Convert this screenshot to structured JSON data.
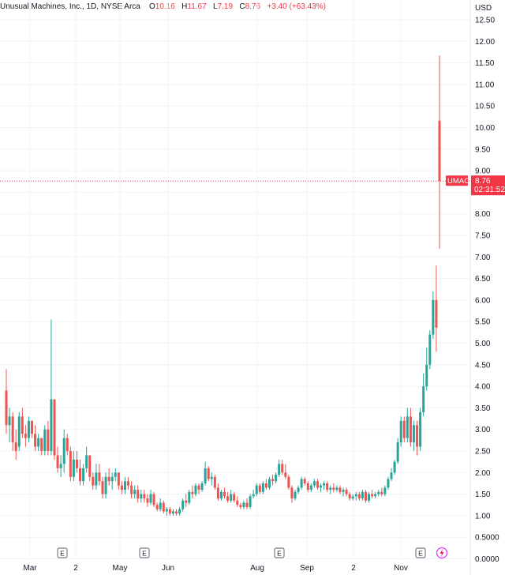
{
  "header": {
    "symbol_title": "Unusual Machines, Inc., 1D, NYSE Arca",
    "open_label": "O",
    "open_value": "10.16",
    "high_label": "H",
    "high_value": "11.67",
    "low_label": "L",
    "low_value": "7.19",
    "close_label": "C",
    "close_value": "8.76",
    "change": "+3.40 (+63.43%)"
  },
  "price_axis": {
    "currency": "USD",
    "ticks": [
      "12.50",
      "12.00",
      "11.50",
      "11.00",
      "10.50",
      "10.00",
      "9.50",
      "9.00",
      "8.50",
      "8.00",
      "7.50",
      "7.00",
      "6.50",
      "6.00",
      "5.50",
      "5.00",
      "4.50",
      "4.00",
      "3.50",
      "3.00",
      "2.50",
      "2.00",
      "1.50",
      "1.00",
      "0.5000",
      "0.0000"
    ]
  },
  "price_marker": {
    "ticker": "UMAC",
    "price": "8.76",
    "countdown": "02:31:52"
  },
  "time_axis": {
    "labels": [
      "Mar",
      "2",
      "May",
      "Jun",
      "Aug",
      "Sep",
      "2",
      "Nov"
    ]
  },
  "events": [
    {
      "type": "earnings",
      "label": "E"
    },
    {
      "type": "earnings",
      "label": "E"
    },
    {
      "type": "earnings",
      "label": "E"
    },
    {
      "type": "earnings",
      "label": "E"
    },
    {
      "type": "split",
      "label": "lightning-icon"
    }
  ],
  "colors": {
    "up": "#26a69a",
    "down": "#ef5350",
    "marker": "#f23645",
    "grid": "#f0f3fa",
    "axis_text": "#131722"
  },
  "chart_data": {
    "type": "candlestick",
    "title": "Unusual Machines, Inc., 1D, NYSE Arca",
    "ylabel": "USD",
    "ylim": [
      0,
      12.75
    ],
    "grid": true,
    "last_price": 8.76,
    "candles": [
      [
        3.9,
        4.4,
        2.9,
        3.1
      ],
      [
        3.1,
        3.5,
        2.7,
        3.3
      ],
      [
        3.3,
        3.4,
        2.5,
        2.7
      ],
      [
        2.7,
        3.0,
        2.3,
        2.5
      ],
      [
        2.6,
        3.4,
        2.5,
        3.3
      ],
      [
        3.3,
        3.5,
        2.8,
        2.9
      ],
      [
        2.9,
        3.1,
        2.6,
        2.8
      ],
      [
        2.8,
        3.3,
        2.7,
        3.2
      ],
      [
        3.2,
        3.2,
        2.8,
        2.9
      ],
      [
        2.9,
        3.1,
        2.5,
        2.6
      ],
      [
        2.6,
        2.9,
        2.5,
        2.8
      ],
      [
        2.8,
        2.8,
        2.4,
        2.5
      ],
      [
        2.5,
        3.1,
        2.4,
        3.0
      ],
      [
        3.0,
        3.2,
        2.4,
        2.5
      ],
      [
        2.5,
        5.55,
        2.4,
        3.7
      ],
      [
        3.7,
        3.7,
        2.3,
        2.4
      ],
      [
        2.4,
        2.6,
        2.0,
        2.1
      ],
      [
        2.1,
        2.4,
        1.9,
        2.2
      ],
      [
        2.2,
        3.0,
        2.0,
        2.8
      ],
      [
        2.8,
        2.9,
        2.4,
        2.5
      ],
      [
        2.5,
        2.6,
        1.8,
        1.9
      ],
      [
        1.9,
        2.5,
        1.8,
        2.3
      ],
      [
        2.3,
        2.5,
        2.0,
        2.1
      ],
      [
        2.1,
        2.3,
        1.7,
        1.8
      ],
      [
        1.8,
        2.2,
        1.7,
        2.1
      ],
      [
        2.1,
        2.6,
        2.0,
        2.4
      ],
      [
        2.4,
        2.4,
        1.8,
        1.9
      ],
      [
        1.9,
        2.0,
        1.6,
        1.7
      ],
      [
        1.7,
        2.2,
        1.6,
        2.0
      ],
      [
        2.0,
        2.2,
        1.7,
        1.8
      ],
      [
        1.8,
        1.9,
        1.4,
        1.5
      ],
      [
        1.5,
        2.0,
        1.4,
        1.9
      ],
      [
        1.9,
        2.1,
        1.7,
        1.8
      ],
      [
        1.8,
        2.0,
        1.6,
        1.9
      ],
      [
        1.9,
        2.1,
        1.8,
        2.0
      ],
      [
        2.0,
        2.0,
        1.6,
        1.7
      ],
      [
        1.7,
        1.8,
        1.5,
        1.6
      ],
      [
        1.6,
        1.9,
        1.5,
        1.8
      ],
      [
        1.8,
        1.9,
        1.6,
        1.7
      ],
      [
        1.7,
        1.8,
        1.4,
        1.5
      ],
      [
        1.5,
        1.7,
        1.4,
        1.6
      ],
      [
        1.6,
        1.7,
        1.3,
        1.4
      ],
      [
        1.4,
        1.6,
        1.3,
        1.5
      ],
      [
        1.5,
        1.6,
        1.3,
        1.4
      ],
      [
        1.4,
        1.5,
        1.2,
        1.3
      ],
      [
        1.3,
        1.6,
        1.25,
        1.5
      ],
      [
        1.5,
        1.55,
        1.2,
        1.25
      ],
      [
        1.25,
        1.3,
        1.1,
        1.15
      ],
      [
        1.15,
        1.4,
        1.1,
        1.3
      ],
      [
        1.3,
        1.35,
        1.05,
        1.1
      ],
      [
        1.1,
        1.2,
        1.0,
        1.15
      ],
      [
        1.15,
        1.2,
        1.0,
        1.05
      ],
      [
        1.05,
        1.15,
        1.0,
        1.1
      ],
      [
        1.1,
        1.15,
        1.0,
        1.05
      ],
      [
        1.05,
        1.2,
        1.0,
        1.15
      ],
      [
        1.15,
        1.4,
        1.1,
        1.35
      ],
      [
        1.35,
        1.5,
        1.2,
        1.3
      ],
      [
        1.3,
        1.6,
        1.25,
        1.55
      ],
      [
        1.55,
        1.7,
        1.4,
        1.5
      ],
      [
        1.5,
        1.75,
        1.45,
        1.7
      ],
      [
        1.7,
        1.75,
        1.5,
        1.6
      ],
      [
        1.6,
        1.8,
        1.55,
        1.75
      ],
      [
        1.75,
        2.25,
        1.7,
        2.1
      ],
      [
        2.1,
        2.15,
        1.8,
        1.85
      ],
      [
        1.85,
        2.0,
        1.7,
        1.9
      ],
      [
        1.9,
        1.95,
        1.6,
        1.65
      ],
      [
        1.65,
        1.75,
        1.35,
        1.4
      ],
      [
        1.4,
        1.6,
        1.35,
        1.55
      ],
      [
        1.55,
        1.65,
        1.4,
        1.45
      ],
      [
        1.45,
        1.55,
        1.3,
        1.35
      ],
      [
        1.35,
        1.6,
        1.3,
        1.5
      ],
      [
        1.5,
        1.55,
        1.3,
        1.35
      ],
      [
        1.35,
        1.45,
        1.2,
        1.25
      ],
      [
        1.25,
        1.3,
        1.15,
        1.2
      ],
      [
        1.2,
        1.35,
        1.15,
        1.3
      ],
      [
        1.3,
        1.4,
        1.15,
        1.2
      ],
      [
        1.2,
        1.5,
        1.15,
        1.45
      ],
      [
        1.45,
        1.6,
        1.4,
        1.5
      ],
      [
        1.5,
        1.75,
        1.45,
        1.7
      ],
      [
        1.7,
        1.75,
        1.5,
        1.55
      ],
      [
        1.55,
        1.8,
        1.5,
        1.75
      ],
      [
        1.75,
        1.85,
        1.6,
        1.65
      ],
      [
        1.65,
        1.9,
        1.6,
        1.85
      ],
      [
        1.85,
        1.95,
        1.7,
        1.8
      ],
      [
        1.8,
        2.0,
        1.75,
        1.95
      ],
      [
        1.95,
        2.3,
        1.9,
        2.2
      ],
      [
        2.2,
        2.3,
        1.95,
        2.0
      ],
      [
        2.0,
        2.2,
        1.85,
        1.9
      ],
      [
        1.9,
        1.95,
        1.6,
        1.65
      ],
      [
        1.65,
        1.7,
        1.3,
        1.4
      ],
      [
        1.4,
        1.6,
        1.35,
        1.55
      ],
      [
        1.55,
        1.7,
        1.5,
        1.65
      ],
      [
        1.65,
        1.9,
        1.6,
        1.85
      ],
      [
        1.85,
        1.9,
        1.7,
        1.75
      ],
      [
        1.75,
        1.8,
        1.55,
        1.6
      ],
      [
        1.6,
        1.75,
        1.55,
        1.7
      ],
      [
        1.7,
        1.85,
        1.65,
        1.8
      ],
      [
        1.8,
        1.85,
        1.6,
        1.65
      ],
      [
        1.65,
        1.75,
        1.55,
        1.7
      ],
      [
        1.7,
        1.8,
        1.6,
        1.75
      ],
      [
        1.75,
        1.8,
        1.55,
        1.6
      ],
      [
        1.6,
        1.7,
        1.5,
        1.65
      ],
      [
        1.65,
        1.75,
        1.55,
        1.6
      ],
      [
        1.6,
        1.7,
        1.55,
        1.65
      ],
      [
        1.65,
        1.7,
        1.5,
        1.55
      ],
      [
        1.55,
        1.65,
        1.45,
        1.6
      ],
      [
        1.6,
        1.65,
        1.45,
        1.5
      ],
      [
        1.5,
        1.55,
        1.35,
        1.4
      ],
      [
        1.4,
        1.5,
        1.35,
        1.45
      ],
      [
        1.45,
        1.55,
        1.35,
        1.5
      ],
      [
        1.5,
        1.55,
        1.35,
        1.4
      ],
      [
        1.4,
        1.6,
        1.35,
        1.55
      ],
      [
        1.55,
        1.6,
        1.3,
        1.35
      ],
      [
        1.35,
        1.55,
        1.3,
        1.5
      ],
      [
        1.5,
        1.6,
        1.4,
        1.45
      ],
      [
        1.45,
        1.55,
        1.4,
        1.5
      ],
      [
        1.5,
        1.6,
        1.45,
        1.55
      ],
      [
        1.55,
        1.65,
        1.45,
        1.5
      ],
      [
        1.5,
        1.7,
        1.45,
        1.65
      ],
      [
        1.65,
        1.9,
        1.6,
        1.85
      ],
      [
        1.85,
        2.1,
        1.8,
        2.0
      ],
      [
        2.0,
        2.3,
        1.95,
        2.25
      ],
      [
        2.25,
        2.8,
        2.2,
        2.7
      ],
      [
        2.7,
        3.3,
        2.6,
        3.2
      ],
      [
        3.2,
        3.3,
        2.7,
        2.8
      ],
      [
        2.8,
        3.5,
        2.7,
        3.3
      ],
      [
        3.3,
        3.5,
        2.6,
        2.7
      ],
      [
        2.7,
        3.2,
        2.5,
        3.1
      ],
      [
        3.1,
        3.2,
        2.4,
        2.6
      ],
      [
        2.6,
        3.5,
        2.5,
        3.4
      ],
      [
        3.4,
        4.3,
        3.3,
        4.0
      ],
      [
        4.0,
        4.9,
        3.9,
        4.5
      ],
      [
        4.5,
        5.3,
        4.4,
        5.2
      ],
      [
        5.2,
        6.2,
        5.1,
        6.0
      ],
      [
        6.0,
        6.8,
        4.8,
        5.36
      ],
      [
        10.16,
        11.67,
        7.19,
        8.76
      ]
    ]
  }
}
